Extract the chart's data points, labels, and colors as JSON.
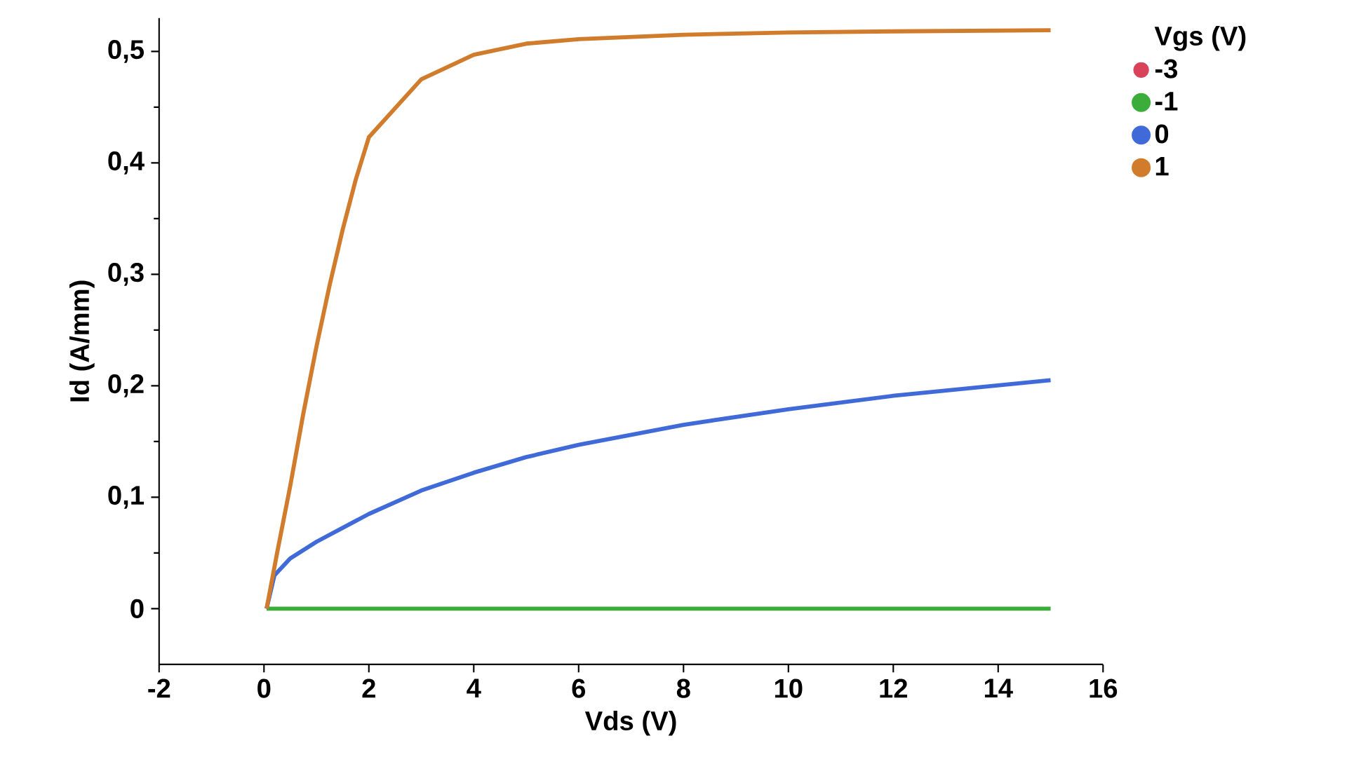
{
  "chart_data": {
    "type": "line",
    "xlabel": "Vds (V)",
    "ylabel": "Id (A/mm)",
    "legend_title": "Vgs (V)",
    "legend": "top right",
    "grid": false,
    "xlim": [
      -2,
      16
    ],
    "xticks": [
      -2,
      0,
      2,
      4,
      6,
      8,
      10,
      12,
      14,
      16
    ],
    "ylim": [
      -0.05,
      0.53
    ],
    "yticks": [
      {
        "value": 0,
        "label": "0"
      },
      {
        "value": 0.1,
        "label": "0,1"
      },
      {
        "value": 0.2,
        "label": "0,2"
      },
      {
        "value": 0.3,
        "label": "0,3"
      },
      {
        "value": 0.4,
        "label": "0,4"
      },
      {
        "value": 0.5,
        "label": "0,5"
      }
    ],
    "series": [
      {
        "name": "-3",
        "color": "#d9435a"
      },
      {
        "name": "-1",
        "color": "#3aad3a",
        "x": [
          0.05,
          15
        ],
        "values": [
          0,
          0
        ]
      },
      {
        "name": "0",
        "color": "#3f6ad8",
        "x": [
          0.05,
          0.2,
          0.5,
          1,
          2,
          3,
          4,
          5,
          6,
          8,
          10,
          12,
          15
        ],
        "values": [
          0,
          0.03,
          0.045,
          0.06,
          0.085,
          0.106,
          0.122,
          0.136,
          0.147,
          0.165,
          0.179,
          0.191,
          0.205
        ]
      },
      {
        "name": "1",
        "color": "#d07c2c",
        "x": [
          0.05,
          0.25,
          0.5,
          0.75,
          1,
          1.25,
          1.5,
          1.75,
          2,
          3,
          4,
          5,
          6,
          7,
          8,
          10,
          12,
          15
        ],
        "values": [
          0,
          0.05,
          0.11,
          0.175,
          0.235,
          0.29,
          0.34,
          0.385,
          0.423,
          0.475,
          0.497,
          0.507,
          0.511,
          0.513,
          0.515,
          0.517,
          0.518,
          0.519
        ]
      }
    ]
  }
}
